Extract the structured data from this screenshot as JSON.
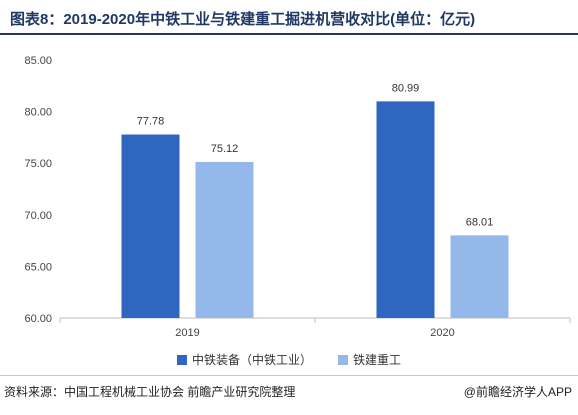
{
  "title": "图表8：2019-2020年中铁工业与铁建重工掘进机营收对比(单位：亿元)",
  "source": "资料来源：中国工程机械工业协会 前瞻产业研究院整理",
  "credit": "@前瞻经济学人APP",
  "colors": {
    "series1": "#2e66c0",
    "series2": "#94b8ea",
    "title": "#1f3864"
  },
  "chart_data": {
    "type": "bar",
    "title": "图表8：2019-2020年中铁工业与铁建重工掘进机营收对比(单位：亿元)",
    "categories": [
      "2019",
      "2020"
    ],
    "series": [
      {
        "name": "中铁装备（中铁工业）",
        "values": [
          77.78,
          80.99
        ],
        "labels": [
          "77.78",
          "80.99"
        ],
        "color": "#2e66c0"
      },
      {
        "name": "铁建重工",
        "values": [
          75.12,
          68.01
        ],
        "labels": [
          "75.12",
          "68.01"
        ],
        "color": "#94b8ea"
      }
    ],
    "ylim": [
      60,
      85
    ],
    "yticks": [
      "60.00",
      "65.00",
      "70.00",
      "75.00",
      "80.00",
      "85.00"
    ],
    "grid": false,
    "legend": "bottom"
  }
}
